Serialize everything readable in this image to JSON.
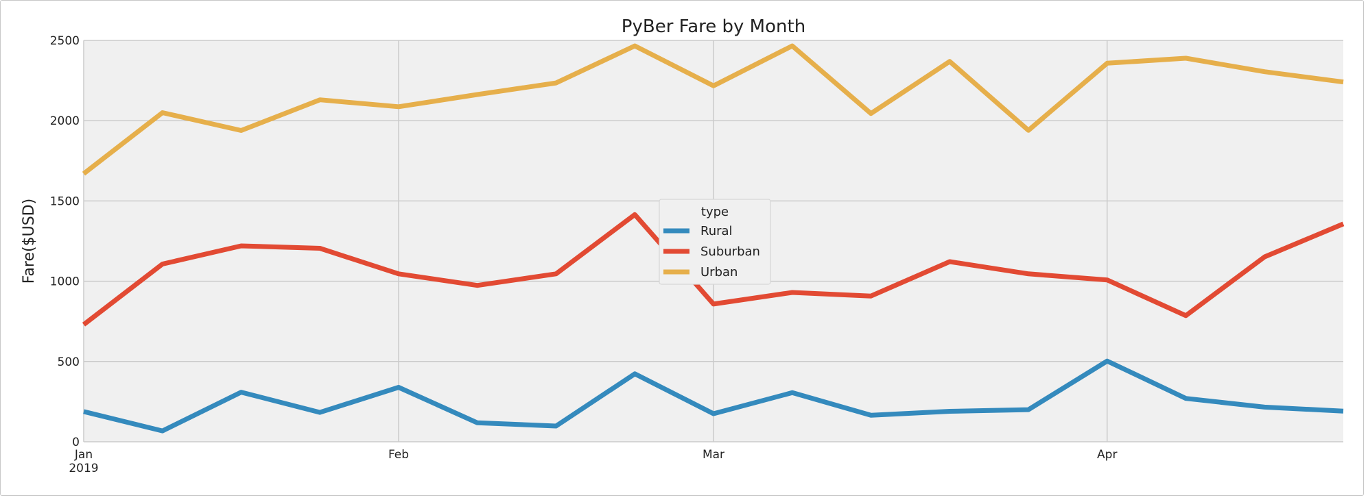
{
  "chart_data": {
    "type": "line",
    "title": "PyBer Fare by Month",
    "xlabel": "",
    "ylabel": "Fare($USD)",
    "ylim": [
      0,
      2500
    ],
    "yticks": [
      0,
      500,
      1000,
      1500,
      2000,
      2500
    ],
    "xticks": [
      {
        "week": 0,
        "label": "Jan",
        "sublabel": "2019"
      },
      {
        "week": 4,
        "label": "Feb",
        "sublabel": ""
      },
      {
        "week": 8,
        "label": "Mar",
        "sublabel": ""
      },
      {
        "week": 13,
        "label": "Apr",
        "sublabel": ""
      }
    ],
    "x": [
      "2019-01-06",
      "2019-01-13",
      "2019-01-20",
      "2019-01-27",
      "2019-02-03",
      "2019-02-10",
      "2019-02-17",
      "2019-02-24",
      "2019-03-03",
      "2019-03-10",
      "2019-03-17",
      "2019-03-24",
      "2019-03-31",
      "2019-04-07",
      "2019-04-14",
      "2019-04-21",
      "2019-04-28"
    ],
    "grid": true,
    "legend": {
      "title": "type",
      "placement": "center"
    },
    "series": [
      {
        "name": "Rural",
        "color": "#348ABD",
        "values": [
          188,
          68,
          309,
          183,
          339,
          118,
          98,
          423,
          175,
          306,
          165,
          190,
          200,
          503,
          270,
          216,
          191
        ]
      },
      {
        "name": "Suburban",
        "color": "#E24A33",
        "values": [
          730,
          1107,
          1220,
          1205,
          1046,
          974,
          1046,
          1415,
          858,
          930,
          908,
          1122,
          1046,
          1008,
          786,
          1152,
          1357
        ]
      },
      {
        "name": "Urban",
        "color": "#E6AF4B",
        "values": [
          1670,
          2050,
          1939,
          2130,
          2087,
          2163,
          2235,
          2466,
          2217,
          2466,
          2045,
          2369,
          1940,
          2358,
          2389,
          2305,
          2241
        ]
      }
    ]
  }
}
